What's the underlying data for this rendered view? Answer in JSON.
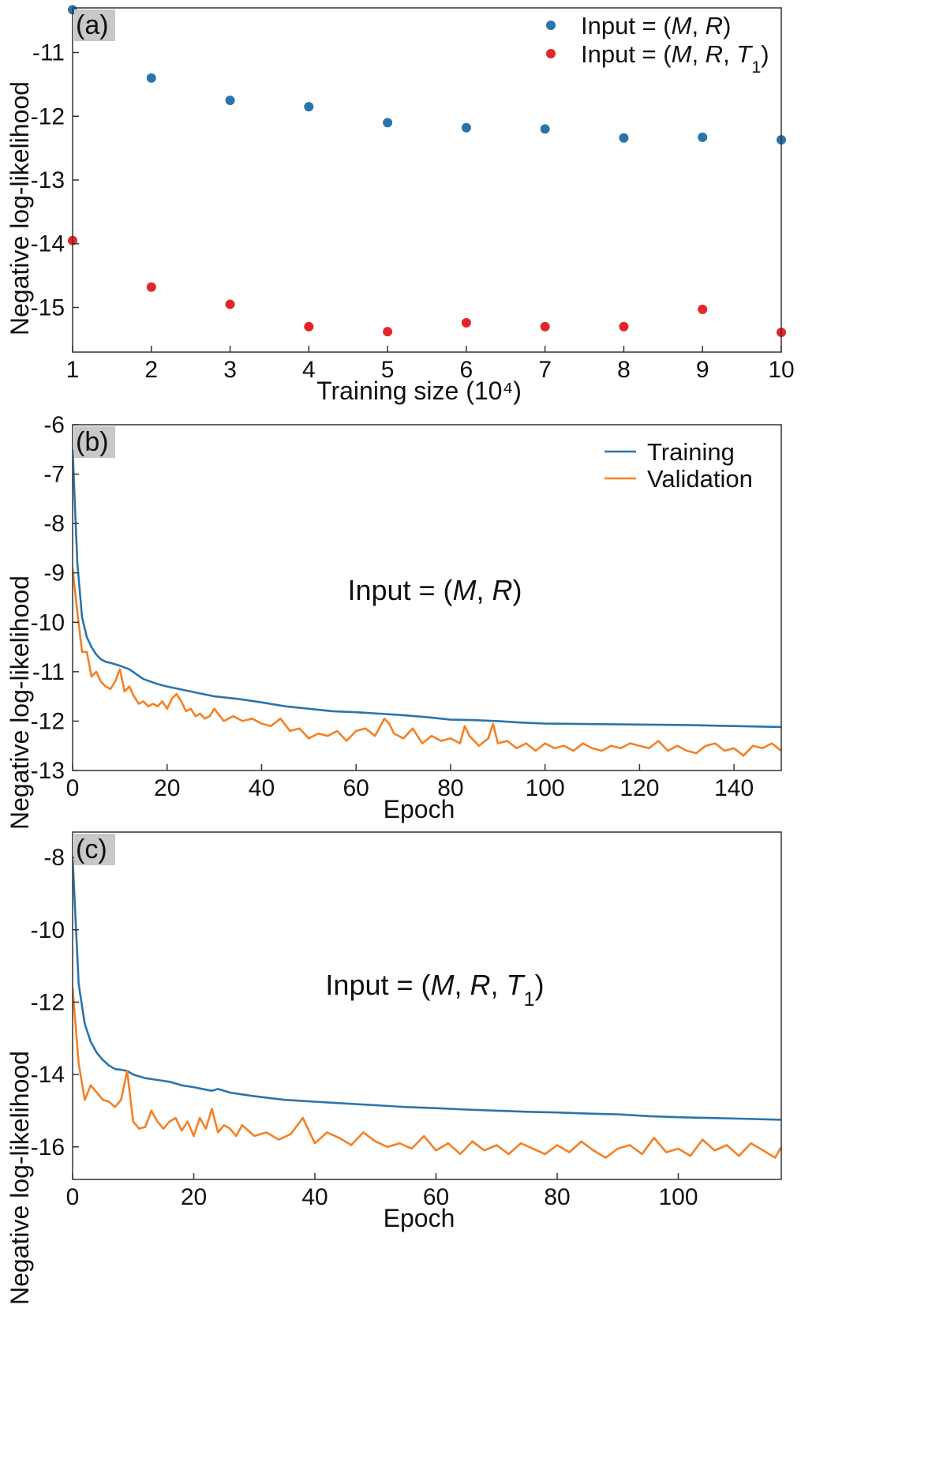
{
  "figure": {
    "ylabel": "Negative log-likelihood"
  },
  "chart_data": [
    {
      "panel": "(a)",
      "type": "scatter",
      "xlabel": "Training size (10⁴)",
      "ylabel": "Negative log-likelihood",
      "xlim": [
        1,
        10
      ],
      "ylim": [
        -15.7,
        -10.3
      ],
      "xticks": [
        1,
        2,
        3,
        4,
        5,
        6,
        7,
        8,
        9,
        10
      ],
      "yticks": [
        -11,
        -12,
        -13,
        -14,
        -15
      ],
      "legend_location": "top-right",
      "series": [
        {
          "name": "Input = (M, R)",
          "color": "#2a74ad",
          "x": [
            1,
            2,
            3,
            4,
            5,
            6,
            7,
            8,
            9,
            10
          ],
          "y": [
            -10.33,
            -11.4,
            -11.75,
            -11.85,
            -12.1,
            -12.18,
            -12.2,
            -12.34,
            -12.33,
            -12.37
          ]
        },
        {
          "name": "Input = (M, R, T1)",
          "color": "#e4262a",
          "x": [
            1,
            2,
            3,
            4,
            5,
            6,
            7,
            8,
            9,
            10
          ],
          "y": [
            -13.95,
            -14.68,
            -14.95,
            -15.3,
            -15.38,
            -15.24,
            -15.3,
            -15.3,
            -15.03,
            -15.39
          ]
        }
      ]
    },
    {
      "panel": "(b)",
      "type": "line",
      "xlabel": "Epoch",
      "ylabel": "Negative log-likelihood",
      "xlim": [
        0,
        150
      ],
      "ylim": [
        -13,
        -6
      ],
      "xticks": [
        0,
        20,
        40,
        60,
        80,
        100,
        120,
        140
      ],
      "yticks": [
        -6,
        -7,
        -8,
        -9,
        -10,
        -11,
        -12,
        -13
      ],
      "annotation": "Input = (M, R)",
      "legend_location": "top-right",
      "series": [
        {
          "name": "Training",
          "color": "#2a74ad",
          "x": [
            0,
            1,
            2,
            3,
            4,
            5,
            6,
            7,
            8,
            10,
            12,
            15,
            18,
            20,
            25,
            30,
            35,
            40,
            45,
            50,
            55,
            60,
            65,
            70,
            75,
            80,
            85,
            90,
            95,
            100,
            110,
            120,
            130,
            140,
            150
          ],
          "y": [
            -6.5,
            -8.8,
            -9.9,
            -10.3,
            -10.5,
            -10.65,
            -10.75,
            -10.8,
            -10.82,
            -10.88,
            -10.95,
            -11.15,
            -11.25,
            -11.3,
            -11.4,
            -11.5,
            -11.55,
            -11.62,
            -11.7,
            -11.75,
            -11.8,
            -11.82,
            -11.85,
            -11.88,
            -11.92,
            -11.97,
            -11.98,
            -12.0,
            -12.03,
            -12.05,
            -12.06,
            -12.07,
            -12.08,
            -12.1,
            -12.12
          ]
        },
        {
          "name": "Validation",
          "color": "#f58024",
          "x": [
            0,
            1,
            2,
            3,
            4,
            5,
            6,
            7,
            8,
            9,
            10,
            11,
            12,
            13,
            14,
            15,
            16,
            17,
            18,
            19,
            20,
            21,
            22,
            23,
            24,
            25,
            26,
            27,
            28,
            29,
            30,
            32,
            34,
            36,
            38,
            40,
            42,
            44,
            46,
            48,
            50,
            52,
            54,
            56,
            58,
            60,
            62,
            64,
            66,
            67,
            68,
            70,
            72,
            74,
            76,
            78,
            80,
            82,
            83,
            84,
            86,
            88,
            89,
            90,
            92,
            94,
            96,
            98,
            100,
            102,
            104,
            106,
            108,
            110,
            112,
            114,
            116,
            118,
            120,
            122,
            124,
            126,
            128,
            130,
            132,
            134,
            136,
            138,
            140,
            142,
            144,
            146,
            148,
            150
          ],
          "y": [
            -8.9,
            -9.8,
            -10.6,
            -10.6,
            -11.1,
            -11.0,
            -11.2,
            -11.3,
            -11.35,
            -11.2,
            -10.95,
            -11.4,
            -11.3,
            -11.5,
            -11.65,
            -11.6,
            -11.7,
            -11.65,
            -11.7,
            -11.6,
            -11.75,
            -11.55,
            -11.45,
            -11.6,
            -11.8,
            -11.75,
            -11.9,
            -11.85,
            -11.95,
            -11.9,
            -11.75,
            -12.0,
            -11.9,
            -12.0,
            -11.95,
            -12.05,
            -12.1,
            -11.95,
            -12.2,
            -12.15,
            -12.35,
            -12.25,
            -12.3,
            -12.2,
            -12.4,
            -12.2,
            -12.15,
            -12.3,
            -11.95,
            -12.05,
            -12.25,
            -12.35,
            -12.15,
            -12.45,
            -12.3,
            -12.4,
            -12.35,
            -12.45,
            -12.1,
            -12.3,
            -12.5,
            -12.35,
            -12.05,
            -12.45,
            -12.4,
            -12.55,
            -12.45,
            -12.6,
            -12.45,
            -12.55,
            -12.5,
            -12.6,
            -12.45,
            -12.55,
            -12.6,
            -12.5,
            -12.55,
            -12.45,
            -12.5,
            -12.55,
            -12.4,
            -12.6,
            -12.5,
            -12.6,
            -12.65,
            -12.5,
            -12.45,
            -12.6,
            -12.55,
            -12.7,
            -12.5,
            -12.55,
            -12.45,
            -12.6
          ]
        }
      ]
    },
    {
      "panel": "(c)",
      "type": "line",
      "xlabel": "Epoch",
      "ylabel": "Negative log-likelihood",
      "xlim": [
        0,
        117
      ],
      "ylim": [
        -16.9,
        -7.3
      ],
      "xticks": [
        0,
        20,
        40,
        60,
        80,
        100
      ],
      "yticks": [
        -8,
        -10,
        -12,
        -14,
        -16
      ],
      "annotation": "Input = (M, R, T1)",
      "series": [
        {
          "name": "Training",
          "color": "#2a74ad",
          "x": [
            0,
            1,
            2,
            3,
            4,
            5,
            6,
            7,
            8,
            9,
            10,
            12,
            14,
            16,
            18,
            20,
            22,
            23,
            24,
            26,
            28,
            30,
            35,
            40,
            45,
            50,
            55,
            60,
            65,
            70,
            75,
            80,
            85,
            90,
            95,
            100,
            105,
            110,
            117
          ],
          "y": [
            -8.0,
            -11.5,
            -12.6,
            -13.1,
            -13.4,
            -13.6,
            -13.75,
            -13.85,
            -13.87,
            -13.9,
            -14.0,
            -14.1,
            -14.15,
            -14.2,
            -14.3,
            -14.35,
            -14.42,
            -14.45,
            -14.4,
            -14.5,
            -14.55,
            -14.6,
            -14.7,
            -14.75,
            -14.8,
            -14.85,
            -14.9,
            -14.93,
            -14.97,
            -15.0,
            -15.03,
            -15.05,
            -15.08,
            -15.1,
            -15.15,
            -15.18,
            -15.2,
            -15.22,
            -15.25
          ]
        },
        {
          "name": "Validation",
          "color": "#f58024",
          "x": [
            0,
            1,
            2,
            3,
            4,
            5,
            6,
            7,
            8,
            9,
            10,
            11,
            12,
            13,
            14,
            15,
            16,
            17,
            18,
            19,
            20,
            21,
            22,
            23,
            24,
            25,
            26,
            27,
            28,
            29,
            30,
            32,
            34,
            36,
            38,
            40,
            42,
            44,
            46,
            48,
            50,
            52,
            54,
            56,
            58,
            60,
            62,
            64,
            66,
            68,
            70,
            72,
            74,
            76,
            78,
            80,
            82,
            84,
            86,
            88,
            90,
            92,
            94,
            96,
            98,
            100,
            102,
            104,
            106,
            108,
            110,
            112,
            114,
            116,
            117
          ],
          "y": [
            -11.6,
            -13.7,
            -14.7,
            -14.3,
            -14.5,
            -14.7,
            -14.75,
            -14.9,
            -14.7,
            -13.9,
            -15.3,
            -15.5,
            -15.45,
            -15.0,
            -15.3,
            -15.5,
            -15.3,
            -15.2,
            -15.55,
            -15.3,
            -15.7,
            -15.2,
            -15.5,
            -14.95,
            -15.6,
            -15.4,
            -15.5,
            -15.7,
            -15.4,
            -15.55,
            -15.7,
            -15.6,
            -15.8,
            -15.65,
            -15.2,
            -15.9,
            -15.6,
            -15.75,
            -15.95,
            -15.6,
            -15.85,
            -16.0,
            -15.9,
            -16.05,
            -15.7,
            -16.1,
            -15.9,
            -16.2,
            -15.85,
            -16.1,
            -15.95,
            -16.2,
            -15.9,
            -16.05,
            -16.2,
            -15.95,
            -16.15,
            -15.85,
            -16.1,
            -16.3,
            -16.05,
            -15.95,
            -16.2,
            -15.75,
            -16.15,
            -16.05,
            -16.25,
            -15.8,
            -16.1,
            -15.95,
            -16.25,
            -15.9,
            -16.1,
            -16.3,
            -16.0
          ]
        }
      ]
    }
  ]
}
